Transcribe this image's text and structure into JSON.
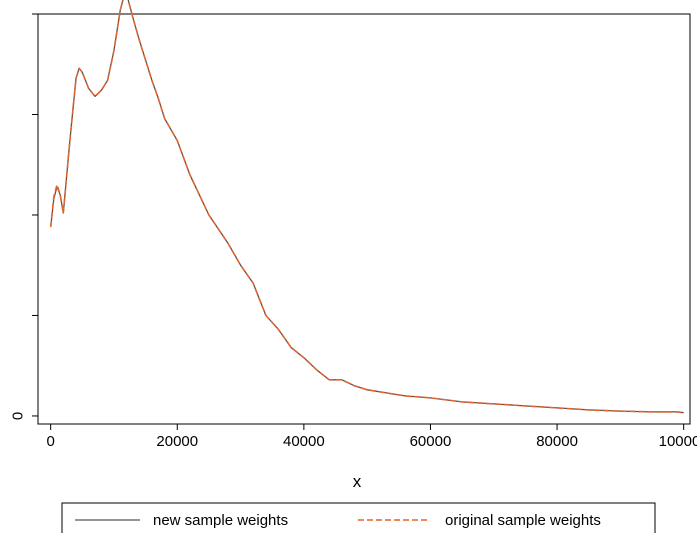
{
  "chart_data": {
    "type": "line",
    "title": "",
    "xlabel": "x",
    "ylabel": "",
    "xlim": [
      -2000,
      101000
    ],
    "ylim": [
      -0.02,
      1.0
    ],
    "x_ticks": [
      0,
      20000,
      40000,
      60000,
      80000,
      100000
    ],
    "x_tick_labels": [
      "0",
      "20000",
      "40000",
      "60000",
      "80000",
      "100000"
    ],
    "y_ticks": [
      0,
      0.25,
      0.5,
      0.75,
      1.0
    ],
    "y_tick_labels": [
      "0",
      "",
      "",
      "",
      ""
    ],
    "grid": false,
    "legend_position": "bottom",
    "series": [
      {
        "name": "new sample weights",
        "color": "#555555",
        "style": "solid",
        "x": [
          0,
          500,
          1000,
          1500,
          2000,
          3000,
          4000,
          4500,
          5000,
          6000,
          7000,
          8000,
          9000,
          10000,
          11000,
          11500,
          12000,
          12500,
          13000,
          14000,
          15000,
          16000,
          17000,
          18000,
          20000,
          22000,
          25000,
          28000,
          30000,
          32000,
          34000,
          36000,
          38000,
          40000,
          42000,
          44000,
          46000,
          48000,
          50000,
          52000,
          54000,
          56000,
          60000,
          65000,
          70000,
          75000,
          80000,
          85000,
          90000,
          95000,
          99000,
          100000
        ],
        "y": [
          0.47,
          0.54,
          0.57,
          0.55,
          0.505,
          0.68,
          0.84,
          0.865,
          0.855,
          0.815,
          0.795,
          0.81,
          0.835,
          0.91,
          1.01,
          1.04,
          1.05,
          1.02,
          0.99,
          0.935,
          0.885,
          0.835,
          0.79,
          0.74,
          0.685,
          0.6,
          0.5,
          0.43,
          0.375,
          0.33,
          0.25,
          0.215,
          0.17,
          0.145,
          0.115,
          0.09,
          0.09,
          0.075,
          0.065,
          0.06,
          0.055,
          0.05,
          0.045,
          0.035,
          0.03,
          0.025,
          0.02,
          0.015,
          0.012,
          0.01,
          0.01,
          0.008
        ]
      },
      {
        "name": "original sample weights",
        "color": "#e8622a",
        "style": "dashed",
        "x": [
          0,
          500,
          1000,
          1500,
          2000,
          3000,
          4000,
          4500,
          5000,
          6000,
          7000,
          8000,
          9000,
          10000,
          11000,
          11500,
          12000,
          12500,
          13000,
          14000,
          15000,
          16000,
          17000,
          18000,
          20000,
          22000,
          25000,
          28000,
          30000,
          32000,
          34000,
          36000,
          38000,
          40000,
          42000,
          44000,
          46000,
          48000,
          50000,
          52000,
          54000,
          56000,
          60000,
          65000,
          70000,
          75000,
          80000,
          85000,
          90000,
          95000,
          99000,
          100000
        ],
        "y": [
          0.47,
          0.545,
          0.575,
          0.55,
          0.505,
          0.68,
          0.84,
          0.865,
          0.855,
          0.815,
          0.795,
          0.81,
          0.835,
          0.91,
          1.01,
          1.04,
          1.05,
          1.02,
          0.99,
          0.935,
          0.885,
          0.835,
          0.79,
          0.74,
          0.685,
          0.6,
          0.5,
          0.43,
          0.375,
          0.33,
          0.25,
          0.215,
          0.17,
          0.145,
          0.115,
          0.09,
          0.09,
          0.075,
          0.065,
          0.06,
          0.055,
          0.05,
          0.045,
          0.035,
          0.03,
          0.025,
          0.02,
          0.015,
          0.012,
          0.01,
          0.01,
          0.008
        ]
      }
    ]
  }
}
